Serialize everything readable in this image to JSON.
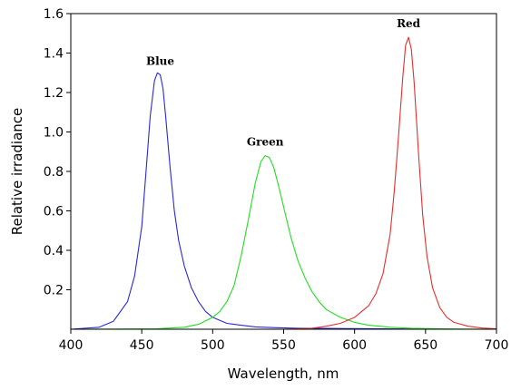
{
  "chart_data": {
    "type": "line",
    "title": "",
    "xlabel": "Wavelength, nm",
    "ylabel": "Relative irradiance",
    "xlim": [
      400,
      700
    ],
    "ylim": [
      0,
      1.6
    ],
    "xticks": [
      {
        "value": 400,
        "label": "400"
      },
      {
        "value": 450,
        "label": "450"
      },
      {
        "value": 500,
        "label": "500"
      },
      {
        "value": 550,
        "label": "550"
      },
      {
        "value": 600,
        "label": "600"
      },
      {
        "value": 650,
        "label": "650"
      },
      {
        "value": 700,
        "label": "700"
      }
    ],
    "yticks": [
      {
        "value": 0.2,
        "label": "0.2"
      },
      {
        "value": 0.4,
        "label": "0.4"
      },
      {
        "value": 0.6,
        "label": "0.6"
      },
      {
        "value": 0.8,
        "label": "0.8"
      },
      {
        "value": 1.0,
        "label": "1.0"
      },
      {
        "value": 1.2,
        "label": "1.2"
      },
      {
        "value": 1.4,
        "label": "1.4"
      },
      {
        "value": 1.6,
        "label": "1.6"
      }
    ],
    "grid": false,
    "legend": "none",
    "series": [
      {
        "color": "#2a2ad0",
        "x": [
          400,
          420,
          430,
          440,
          445,
          450,
          453,
          456,
          459,
          461,
          463,
          465,
          467,
          470,
          473,
          476,
          480,
          485,
          490,
          495,
          500,
          510,
          520,
          530,
          545,
          560,
          580,
          600,
          620,
          640,
          660,
          680,
          700
        ],
        "y": [
          0.0,
          0.01,
          0.04,
          0.14,
          0.27,
          0.52,
          0.8,
          1.08,
          1.26,
          1.3,
          1.29,
          1.22,
          1.07,
          0.82,
          0.6,
          0.45,
          0.32,
          0.21,
          0.14,
          0.09,
          0.06,
          0.03,
          0.02,
          0.012,
          0.008,
          0.005,
          0.004,
          0.003,
          0.002,
          0.001,
          0.0,
          0.0,
          0.0
        ]
      },
      {
        "color": "#22dd22",
        "x": [
          400,
          460,
          480,
          490,
          500,
          505,
          510,
          515,
          520,
          525,
          530,
          534,
          537,
          540,
          543,
          546,
          550,
          555,
          560,
          565,
          570,
          575,
          580,
          590,
          600,
          610,
          625,
          640,
          660,
          700
        ],
        "y": [
          0.0,
          0.002,
          0.01,
          0.025,
          0.06,
          0.09,
          0.14,
          0.22,
          0.37,
          0.55,
          0.74,
          0.85,
          0.88,
          0.87,
          0.82,
          0.74,
          0.62,
          0.47,
          0.35,
          0.26,
          0.19,
          0.14,
          0.1,
          0.06,
          0.035,
          0.02,
          0.01,
          0.005,
          0.002,
          0.0
        ]
      },
      {
        "color": "#e03030",
        "x": [
          400,
          550,
          570,
          580,
          590,
          600,
          610,
          615,
          620,
          625,
          628,
          631,
          634,
          636,
          638,
          640,
          642,
          645,
          648,
          651,
          655,
          660,
          665,
          670,
          680,
          690,
          700
        ],
        "y": [
          0.0,
          0.0,
          0.005,
          0.015,
          0.03,
          0.06,
          0.12,
          0.18,
          0.28,
          0.48,
          0.7,
          0.98,
          1.28,
          1.44,
          1.48,
          1.42,
          1.25,
          0.9,
          0.58,
          0.37,
          0.21,
          0.11,
          0.06,
          0.035,
          0.015,
          0.006,
          0.002
        ]
      }
    ],
    "annotations": [
      {
        "text": "Blue",
        "x": 463,
        "y": 1.34
      },
      {
        "text": "Green",
        "x": 537,
        "y": 0.93
      },
      {
        "text": "Red",
        "x": 638,
        "y": 1.53
      }
    ]
  }
}
